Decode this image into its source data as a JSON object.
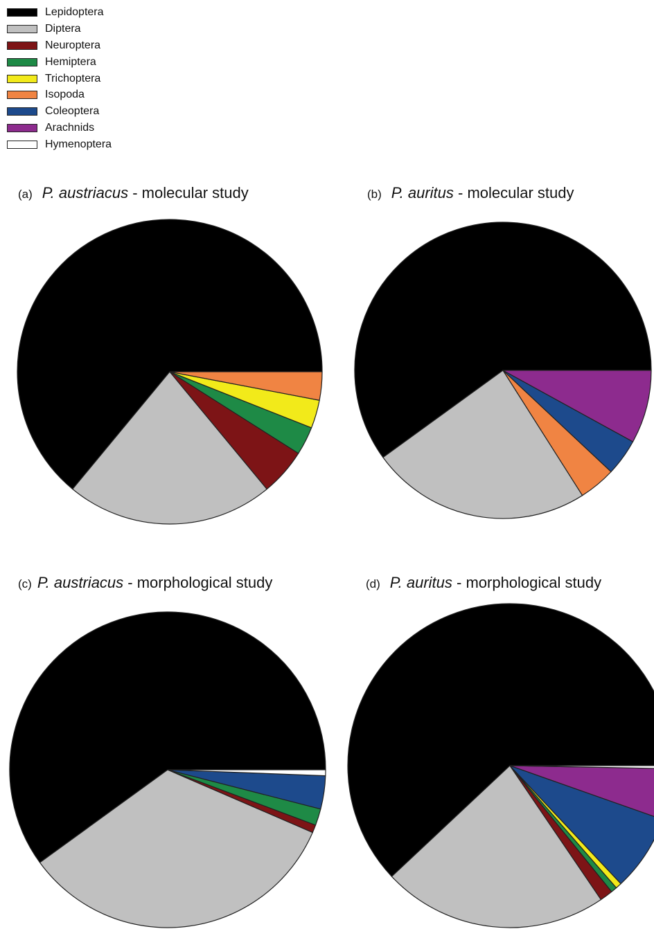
{
  "legend": [
    {
      "label": "Lepidoptera",
      "color": "#000000"
    },
    {
      "label": "Diptera",
      "color": "#c0c0c0"
    },
    {
      "label": "Neuroptera",
      "color": "#7d1416"
    },
    {
      "label": "Hemiptera",
      "color": "#1e8a46"
    },
    {
      "label": "Trichoptera",
      "color": "#f2ea1a"
    },
    {
      "label": "Isopoda",
      "color": "#f08443"
    },
    {
      "label": "Coleoptera",
      "color": "#1d4a8c"
    },
    {
      "label": "Arachnids",
      "color": "#8d2b8e"
    },
    {
      "label": "Hymenoptera",
      "color": "#ffffff"
    }
  ],
  "panels": [
    {
      "letter": "(a)",
      "species": "P. austriacus",
      "study": " - molecular study"
    },
    {
      "letter": "(b)",
      "species": "P. auritus",
      "study": " - molecular study"
    },
    {
      "letter": "(c)",
      "species": "P. austriacus",
      "study": " - morphological study"
    },
    {
      "letter": "(d)",
      "species": "P. auritus",
      "study": " - morphological study"
    }
  ],
  "chart_data": [
    {
      "type": "pie",
      "title": "(a) P. austriacus - molecular study",
      "slices": [
        {
          "label": "Lepidoptera",
          "value": 64.0
        },
        {
          "label": "Diptera",
          "value": 22.0
        },
        {
          "label": "Neuroptera",
          "value": 5.0
        },
        {
          "label": "Hemiptera",
          "value": 3.0
        },
        {
          "label": "Trichoptera",
          "value": 3.0
        },
        {
          "label": "Isopoda",
          "value": 3.0
        }
      ]
    },
    {
      "type": "pie",
      "title": "(b) P. auritus - molecular study",
      "slices": [
        {
          "label": "Lepidoptera",
          "value": 60.0
        },
        {
          "label": "Diptera",
          "value": 24.0
        },
        {
          "label": "Isopoda",
          "value": 4.0
        },
        {
          "label": "Coleoptera",
          "value": 4.0
        },
        {
          "label": "Arachnids",
          "value": 8.0
        }
      ]
    },
    {
      "type": "pie",
      "title": "(c) P. austriacus - morphological study",
      "slices": [
        {
          "label": "Lepidoptera",
          "value": 60.0
        },
        {
          "label": "Diptera",
          "value": 33.5
        },
        {
          "label": "Neuroptera",
          "value": 0.8
        },
        {
          "label": "Hemiptera",
          "value": 1.7
        },
        {
          "label": "Coleoptera",
          "value": 3.4
        },
        {
          "label": "Hymenoptera",
          "value": 0.6
        }
      ]
    },
    {
      "type": "pie",
      "title": "(d) P. auritus - morphological study",
      "slices": [
        {
          "label": "Lepidoptera",
          "value": 62.0
        },
        {
          "label": "Diptera",
          "value": 22.5
        },
        {
          "label": "Neuroptera",
          "value": 1.3
        },
        {
          "label": "Hemiptera",
          "value": 0.6
        },
        {
          "label": "Trichoptera",
          "value": 0.6
        },
        {
          "label": "Coleoptera",
          "value": 7.6
        },
        {
          "label": "Arachnids",
          "value": 5.1
        },
        {
          "label": "Hymenoptera",
          "value": 0.3
        }
      ]
    }
  ]
}
